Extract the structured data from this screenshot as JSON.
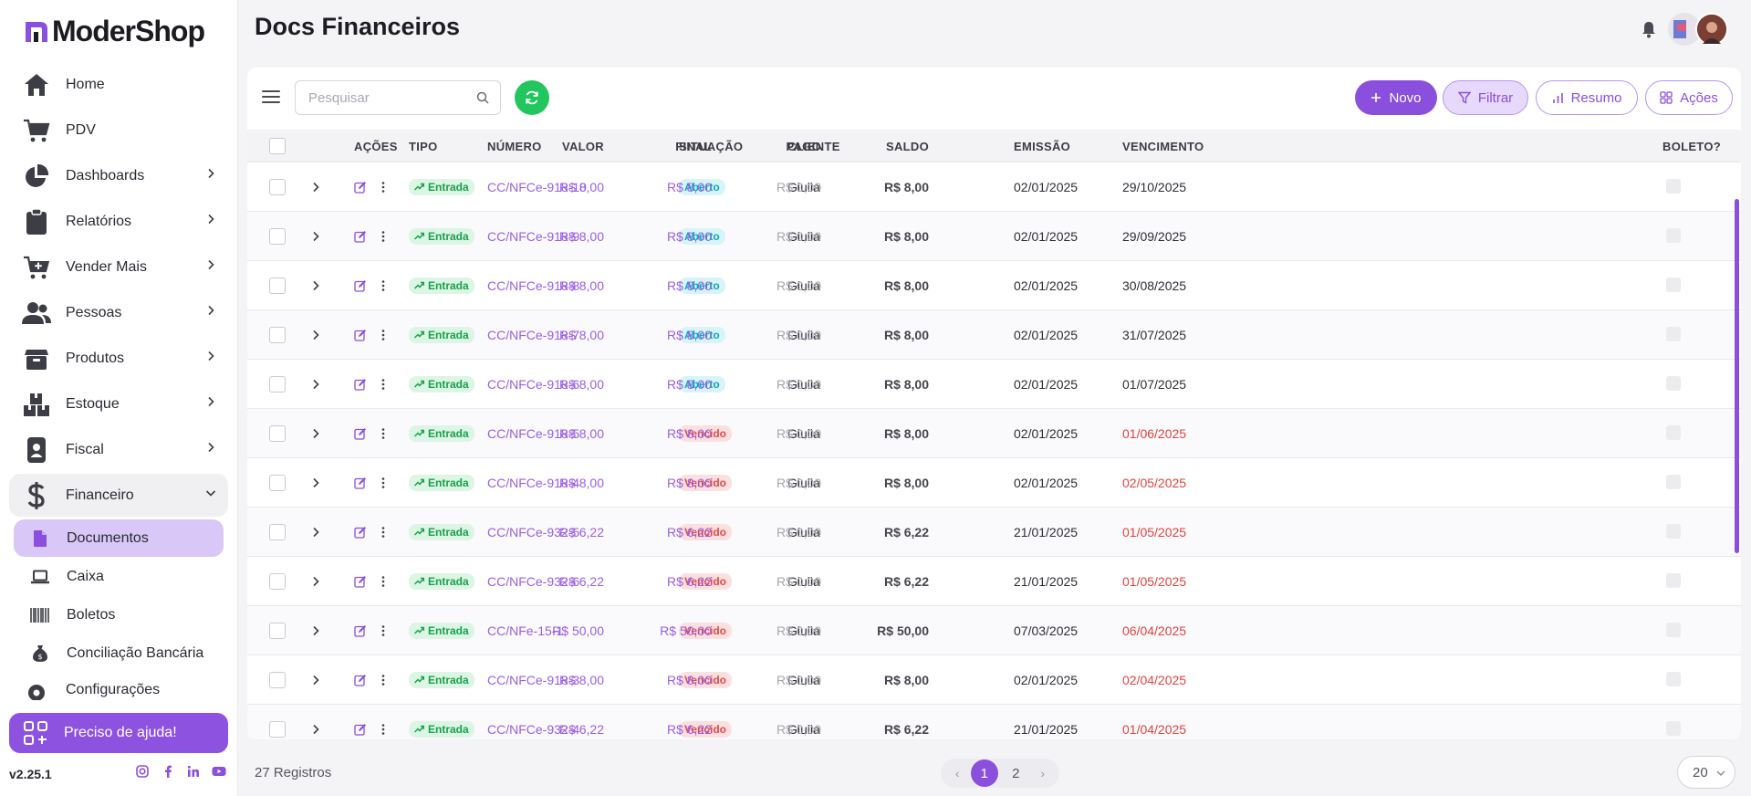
{
  "brand": {
    "name": "ModerShop",
    "accent": "#8a4fdc"
  },
  "page": {
    "title": "Docs Financeiros"
  },
  "sidebar": {
    "items": [
      {
        "label": "Home",
        "icon": "home-icon",
        "has_children": false
      },
      {
        "label": "PDV",
        "icon": "cart-icon",
        "has_children": false
      },
      {
        "label": "Dashboards",
        "icon": "pie-chart-icon",
        "has_children": true
      },
      {
        "label": "Relatórios",
        "icon": "clipboard-icon",
        "has_children": true
      },
      {
        "label": "Vender Mais",
        "icon": "cart-plus-icon",
        "has_children": true
      },
      {
        "label": "Pessoas",
        "icon": "users-icon",
        "has_children": true
      },
      {
        "label": "Produtos",
        "icon": "box-icon",
        "has_children": true
      },
      {
        "label": "Estoque",
        "icon": "boxes-icon",
        "has_children": true
      },
      {
        "label": "Fiscal",
        "icon": "id-badge-icon",
        "has_children": true
      },
      {
        "label": "Financeiro",
        "icon": "dollar-icon",
        "has_children": true,
        "open": true
      }
    ],
    "sub_items": [
      {
        "label": "Documentos",
        "icon": "file-icon",
        "active": true
      },
      {
        "label": "Caixa",
        "icon": "laptop-icon",
        "active": false
      },
      {
        "label": "Boletos",
        "icon": "barcode-icon",
        "active": false
      },
      {
        "label": "Conciliação Bancária",
        "icon": "money-bag-icon",
        "active": false
      }
    ],
    "settings_label": "Configurações",
    "help_label": "Preciso de ajuda!",
    "version": "v2.25.1",
    "socials": [
      "instagram-icon",
      "facebook-icon",
      "linkedin-icon",
      "youtube-icon"
    ]
  },
  "toolbar": {
    "search_placeholder": "Pesquisar",
    "novo_label": "Novo",
    "filtrar_label": "Filtrar",
    "resumo_label": "Resumo",
    "acoes_label": "Ações"
  },
  "table": {
    "headers": {
      "acoes": "AÇÕES",
      "tipo": "TIPO",
      "numero": "NÚMERO",
      "situacao": "SITUAÇÃO",
      "cliente": "CLIENTE",
      "emissao": "EMISSÃO",
      "vencimento": "VENCIMENTO",
      "valor": "VALOR",
      "final": "FINAL",
      "pago": "PAGO",
      "saldo": "SALDO",
      "boleto": "BOLETO?"
    },
    "rows": [
      {
        "tipo": "Entrada",
        "numero": "CC/NFCe-918-10",
        "situacao": "Aberto",
        "cliente": "Giulia",
        "emissao": "02/01/2025",
        "vencimento": "29/10/2025",
        "overdue": false,
        "valor": "R$ 8,00",
        "final": "R$ 8,00",
        "pago": "R$ 0,00",
        "saldo": "R$ 8,00"
      },
      {
        "tipo": "Entrada",
        "numero": "CC/NFCe-918-9",
        "situacao": "Aberto",
        "cliente": "Giulia",
        "emissao": "02/01/2025",
        "vencimento": "29/09/2025",
        "overdue": false,
        "valor": "R$ 8,00",
        "final": "R$ 8,00",
        "pago": "R$ 0,00",
        "saldo": "R$ 8,00"
      },
      {
        "tipo": "Entrada",
        "numero": "CC/NFCe-918-8",
        "situacao": "Aberto",
        "cliente": "Giulia",
        "emissao": "02/01/2025",
        "vencimento": "30/08/2025",
        "overdue": false,
        "valor": "R$ 8,00",
        "final": "R$ 8,00",
        "pago": "R$ 0,00",
        "saldo": "R$ 8,00"
      },
      {
        "tipo": "Entrada",
        "numero": "CC/NFCe-918-7",
        "situacao": "Aberto",
        "cliente": "Giulia",
        "emissao": "02/01/2025",
        "vencimento": "31/07/2025",
        "overdue": false,
        "valor": "R$ 8,00",
        "final": "R$ 8,00",
        "pago": "R$ 0,00",
        "saldo": "R$ 8,00"
      },
      {
        "tipo": "Entrada",
        "numero": "CC/NFCe-918-6",
        "situacao": "Aberto",
        "cliente": "Giulia",
        "emissao": "02/01/2025",
        "vencimento": "01/07/2025",
        "overdue": false,
        "valor": "R$ 8,00",
        "final": "R$ 8,00",
        "pago": "R$ 0,00",
        "saldo": "R$ 8,00"
      },
      {
        "tipo": "Entrada",
        "numero": "CC/NFCe-918-5",
        "situacao": "Vencido",
        "cliente": "Giulia",
        "emissao": "02/01/2025",
        "vencimento": "01/06/2025",
        "overdue": true,
        "valor": "R$ 8,00",
        "final": "R$ 8,00",
        "pago": "R$ 0,00",
        "saldo": "R$ 8,00"
      },
      {
        "tipo": "Entrada",
        "numero": "CC/NFCe-918-4",
        "situacao": "Vencido",
        "cliente": "Giulia",
        "emissao": "02/01/2025",
        "vencimento": "02/05/2025",
        "overdue": true,
        "valor": "R$ 8,00",
        "final": "R$ 8,00",
        "pago": "R$ 0,00",
        "saldo": "R$ 8,00"
      },
      {
        "tipo": "Entrada",
        "numero": "CC/NFCe-932-5",
        "situacao": "Vencido",
        "cliente": "Giulia",
        "emissao": "21/01/2025",
        "vencimento": "01/05/2025",
        "overdue": true,
        "valor": "R$ 6,22",
        "final": "R$ 6,22",
        "pago": "R$ 0,00",
        "saldo": "R$ 6,22"
      },
      {
        "tipo": "Entrada",
        "numero": "CC/NFCe-932-6",
        "situacao": "Vencido",
        "cliente": "Giulia",
        "emissao": "21/01/2025",
        "vencimento": "01/05/2025",
        "overdue": true,
        "valor": "R$ 6,22",
        "final": "R$ 6,22",
        "pago": "R$ 0,00",
        "saldo": "R$ 6,22"
      },
      {
        "tipo": "Entrada",
        "numero": "CC/NFe-15-1",
        "situacao": "Vencido",
        "cliente": "Giulia",
        "emissao": "07/03/2025",
        "vencimento": "06/04/2025",
        "overdue": true,
        "valor": "R$ 50,00",
        "final": "R$ 50,00",
        "pago": "R$ 0,00",
        "saldo": "R$ 50,00"
      },
      {
        "tipo": "Entrada",
        "numero": "CC/NFCe-918-3",
        "situacao": "Vencido",
        "cliente": "Giulia",
        "emissao": "02/01/2025",
        "vencimento": "02/04/2025",
        "overdue": true,
        "valor": "R$ 8,00",
        "final": "R$ 8,00",
        "pago": "R$ 0,00",
        "saldo": "R$ 8,00"
      },
      {
        "tipo": "Entrada",
        "numero": "CC/NFCe-932-4",
        "situacao": "Vencido",
        "cliente": "Giulia",
        "emissao": "21/01/2025",
        "vencimento": "01/04/2025",
        "overdue": true,
        "valor": "R$ 6,22",
        "final": "R$ 6,22",
        "pago": "R$ 0,00",
        "saldo": "R$ 6,22"
      }
    ]
  },
  "footer": {
    "records": "27 Registros",
    "pages": [
      "1",
      "2"
    ],
    "current_page": "1",
    "per_page": "20"
  }
}
